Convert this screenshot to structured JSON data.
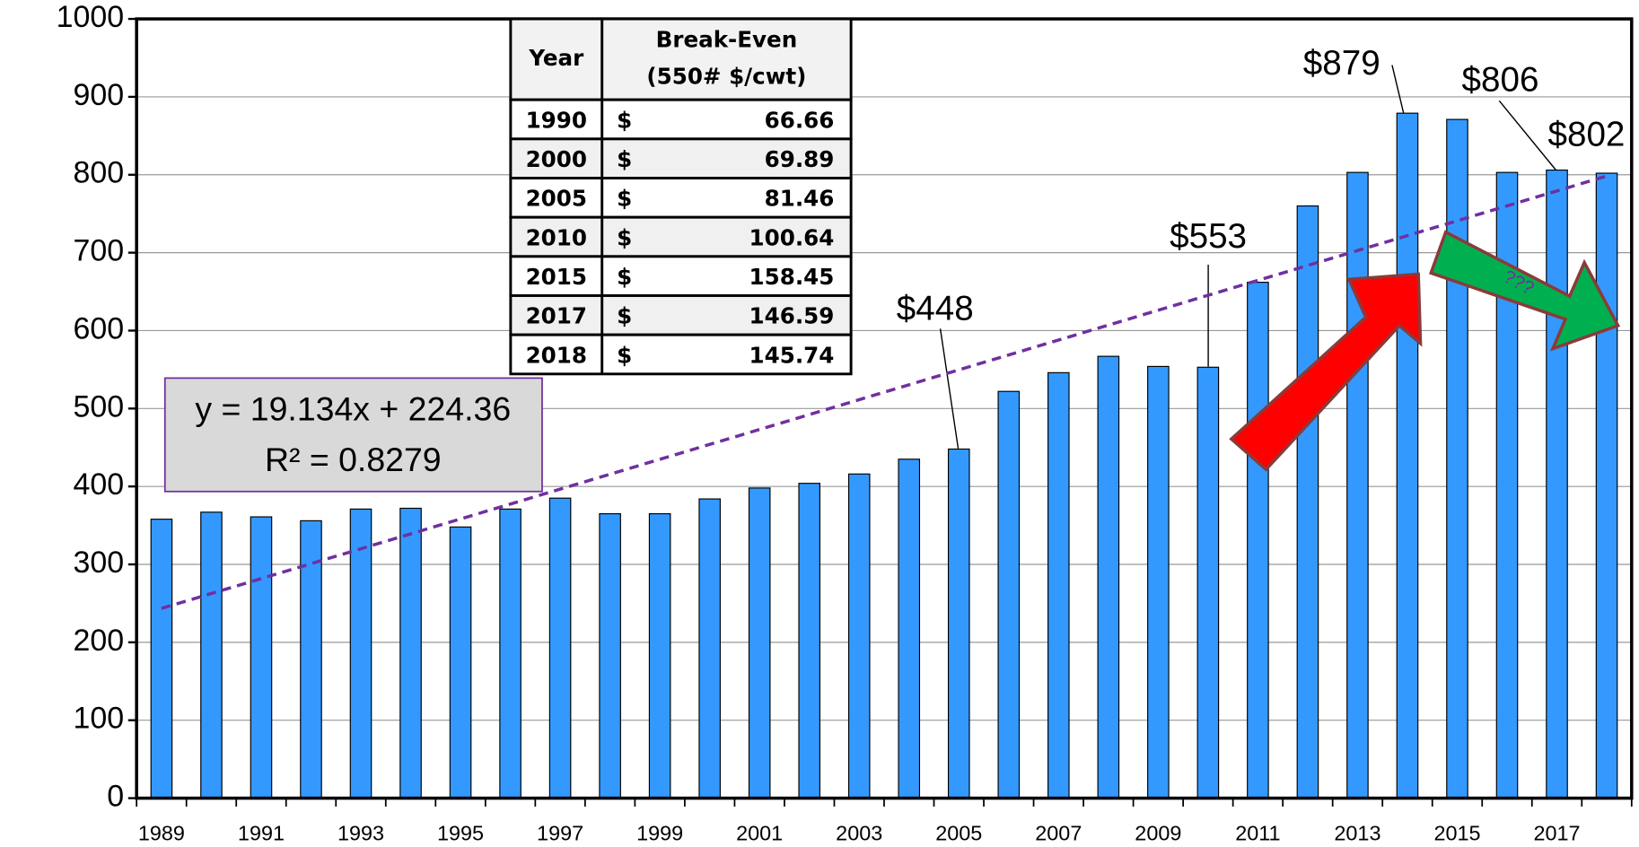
{
  "chart_data": {
    "type": "bar",
    "categories": [
      "1989",
      null,
      "1991",
      null,
      "1993",
      null,
      "1995",
      null,
      "1997",
      null,
      "1999",
      null,
      "2001",
      null,
      "2003",
      null,
      "2005",
      null,
      "2007",
      null,
      "2009",
      null,
      "2011",
      null,
      "2013",
      null,
      "2015",
      null,
      "2017",
      null
    ],
    "values": [
      358,
      367,
      361,
      356,
      371,
      372,
      348,
      371,
      385,
      365,
      365,
      384,
      398,
      404,
      416,
      435,
      448,
      522,
      546,
      567,
      554,
      553,
      662,
      760,
      803,
      879,
      871,
      803,
      806,
      802
    ],
    "value_labels": [
      null,
      null,
      null,
      null,
      null,
      null,
      null,
      null,
      null,
      null,
      null,
      null,
      null,
      null,
      null,
      null,
      "$448",
      null,
      null,
      null,
      null,
      "$553",
      null,
      null,
      null,
      "$879",
      null,
      null,
      "$806",
      "$802"
    ],
    "color": "#3399ff",
    "ylim": [
      0,
      1000
    ],
    "yticks": [
      0,
      100,
      200,
      300,
      400,
      500,
      600,
      700,
      800,
      900,
      1000
    ],
    "grid": true,
    "trendline": {
      "slope": 19.134,
      "intercept": 224.36,
      "color": "#7030a0"
    },
    "annotations": {
      "equation": "y = 19.134x + 224.36",
      "r_squared": "R² = 0.8279",
      "arrow_text": "???"
    },
    "table": {
      "header": {
        "year": "Year",
        "break_even": [
          "Break-Even",
          "(550# $/cwt)"
        ]
      },
      "rows": [
        [
          "1990",
          "$",
          "66.66"
        ],
        [
          "2000",
          "$",
          "69.89"
        ],
        [
          "2005",
          "$",
          "81.46"
        ],
        [
          "2010",
          "$",
          "100.64"
        ],
        [
          "2015",
          "$",
          "158.45"
        ],
        [
          "2017",
          "$",
          "146.59"
        ],
        [
          "2018",
          "$",
          "145.74"
        ]
      ]
    }
  }
}
